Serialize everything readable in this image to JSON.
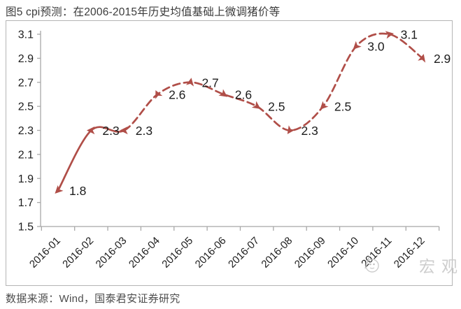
{
  "figure": {
    "title": "图5 cpi预测：在2006-2015年历史均值基础上微调猪价等",
    "source": "数据来源：Wind，国泰君安证券研究",
    "watermark_text": "宏观"
  },
  "chart_data": {
    "type": "line",
    "title": "图5 cpi预测：在2006-2015年历史均值基础上微调猪价等",
    "categories": [
      "2016-01",
      "2016-02",
      "2016-03",
      "2016-04",
      "2016-05",
      "2016-06",
      "2016-07",
      "2016-08",
      "2016-09",
      "2016-10",
      "2016-11",
      "2016-12"
    ],
    "series": [
      {
        "name": "cpi预测",
        "values": [
          1.8,
          2.3,
          2.3,
          2.6,
          2.7,
          2.6,
          2.5,
          2.3,
          2.5,
          3.0,
          3.1,
          2.9
        ],
        "solid_through_index": 2
      }
    ],
    "data_labels": [
      "1.8",
      "2.3",
      "2.3",
      "2.6",
      "2.7",
      "2.6",
      "2.5",
      "2.3",
      "2.5",
      "3.0",
      "3.1",
      "2.9"
    ],
    "xlabel": "",
    "ylabel": "",
    "ylim": [
      1.5,
      3.1
    ],
    "ytick_step": 0.2,
    "yticks": [
      "1.5",
      "1.7",
      "1.9",
      "2.1",
      "2.3",
      "2.5",
      "2.7",
      "2.9",
      "3.1"
    ],
    "grid": false,
    "legend_position": "none",
    "line_styles": {
      "actual": "solid",
      "forecast": "dashed"
    },
    "line_color": "#b04e48",
    "axis_color": "#a8a8a8",
    "text_color": "#1c1c1c",
    "marker": "triangle-arrowhead",
    "marker_angles_deg": [
      225,
      270,
      270,
      335,
      10,
      125,
      125,
      215,
      225,
      225,
      80,
      15
    ],
    "smooth": true
  }
}
